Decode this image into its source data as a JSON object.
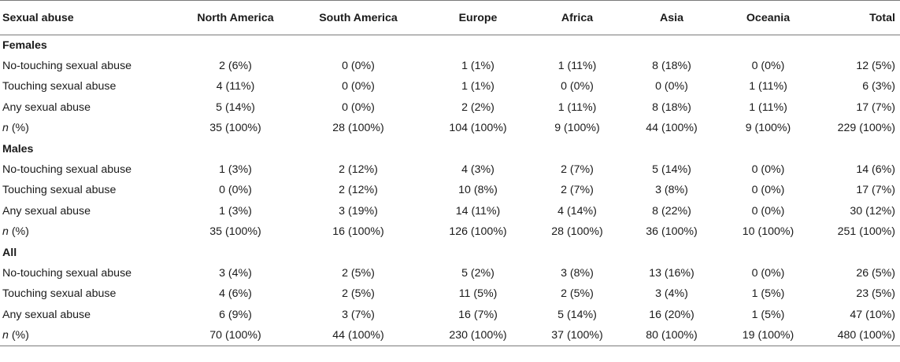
{
  "table": {
    "columns": [
      "Sexual abuse",
      "North America",
      "South America",
      "Europe",
      "Africa",
      "Asia",
      "Oceania",
      "Total"
    ],
    "groups": [
      {
        "label": "Females",
        "rows": [
          {
            "label": "No-touching sexual abuse",
            "values": [
              "2 (6%)",
              "0 (0%)",
              "1 (1%)",
              "1 (11%)",
              "8 (18%)",
              "0 (0%)",
              "12 (5%)"
            ]
          },
          {
            "label": "Touching sexual abuse",
            "values": [
              "4 (11%)",
              "0 (0%)",
              "1 (1%)",
              "0 (0%)",
              "0 (0%)",
              "1 (11%)",
              "6 (3%)"
            ]
          },
          {
            "label": "Any sexual abuse",
            "values": [
              "5 (14%)",
              "0 (0%)",
              "2 (2%)",
              "1 (11%)",
              "8 (18%)",
              "1 (11%)",
              "17 (7%)"
            ]
          },
          {
            "label_italic": "n",
            "label_rest": " (%)",
            "values": [
              "35 (100%)",
              "28 (100%)",
              "104 (100%)",
              "9 (100%)",
              "44 (100%)",
              "9 (100%)",
              "229 (100%)"
            ]
          }
        ]
      },
      {
        "label": "Males",
        "rows": [
          {
            "label": "No-touching sexual abuse",
            "values": [
              "1 (3%)",
              "2 (12%)",
              "4 (3%)",
              "2 (7%)",
              "5 (14%)",
              "0 (0%)",
              "14 (6%)"
            ]
          },
          {
            "label": "Touching sexual abuse",
            "values": [
              "0 (0%)",
              "2 (12%)",
              "10 (8%)",
              "2 (7%)",
              "3 (8%)",
              "0 (0%)",
              "17 (7%)"
            ]
          },
          {
            "label": "Any sexual abuse",
            "values": [
              "1 (3%)",
              "3 (19%)",
              "14 (11%)",
              "4 (14%)",
              "8 (22%)",
              "0 (0%)",
              "30 (12%)"
            ]
          },
          {
            "label_italic": "n",
            "label_rest": " (%)",
            "values": [
              "35 (100%)",
              "16 (100%)",
              "126 (100%)",
              "28 (100%)",
              "36 (100%)",
              "10 (100%)",
              "251 (100%)"
            ]
          }
        ]
      },
      {
        "label": "All",
        "rows": [
          {
            "label": "No-touching sexual abuse",
            "values": [
              "3 (4%)",
              "2 (5%)",
              "5 (2%)",
              "3 (8%)",
              "13 (16%)",
              "0 (0%)",
              "26 (5%)"
            ]
          },
          {
            "label": "Touching sexual abuse",
            "values": [
              "4 (6%)",
              "2 (5%)",
              "11 (5%)",
              "2 (5%)",
              "3 (4%)",
              "1 (5%)",
              "23 (5%)"
            ]
          },
          {
            "label": "Any sexual abuse",
            "values": [
              "6 (9%)",
              "3 (7%)",
              "16 (7%)",
              "5 (14%)",
              "16 (20%)",
              "1 (5%)",
              "47 (10%)"
            ]
          },
          {
            "label_italic": "n",
            "label_rest": " (%)",
            "values": [
              "70 (100%)",
              "44 (100%)",
              "230 (100%)",
              "37 (100%)",
              "80 (100%)",
              "19 (100%)",
              "480 (100%)"
            ]
          }
        ]
      }
    ]
  }
}
